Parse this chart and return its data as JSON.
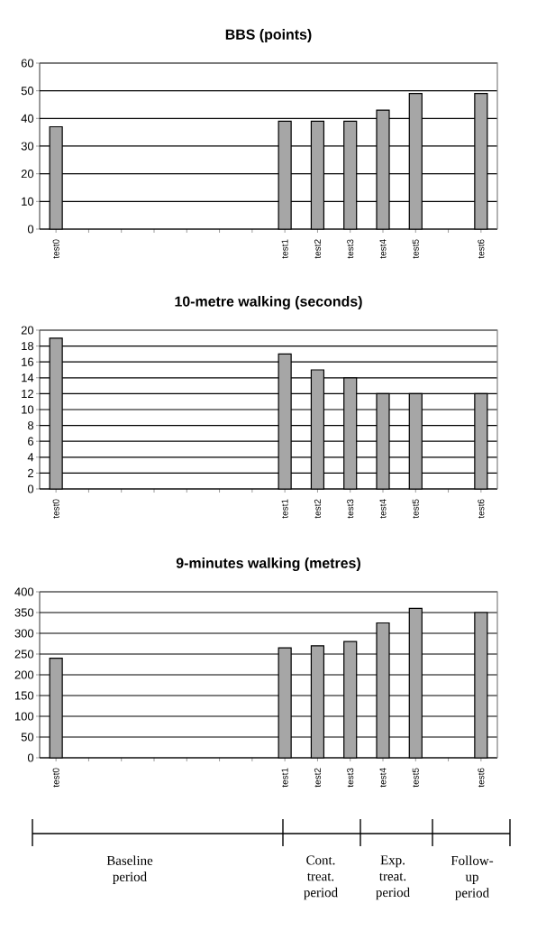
{
  "chart_data": [
    {
      "type": "bar",
      "title": "BBS (points)",
      "categories": [
        "test0",
        null,
        null,
        null,
        null,
        null,
        null,
        "test1",
        "test2",
        "test3",
        "test4",
        "test5",
        null,
        "test6"
      ],
      "values": [
        37,
        null,
        null,
        null,
        null,
        null,
        null,
        39,
        39,
        39,
        43,
        49,
        null,
        49
      ],
      "color": "#a6a6a6",
      "ylim": [
        0,
        60
      ],
      "yticks": [
        0,
        10,
        20,
        30,
        40,
        50,
        60
      ],
      "grid": "y"
    },
    {
      "type": "bar",
      "title": "10-metre walking (seconds)",
      "categories": [
        "test0",
        null,
        null,
        null,
        null,
        null,
        null,
        "test1",
        "test2",
        "test3",
        "test4",
        "test5",
        null,
        "test6"
      ],
      "values": [
        19,
        null,
        null,
        null,
        null,
        null,
        null,
        17,
        15,
        14,
        12,
        12,
        null,
        12
      ],
      "color": "#a6a6a6",
      "ylim": [
        0,
        20
      ],
      "yticks": [
        0,
        2,
        4,
        6,
        8,
        10,
        12,
        14,
        16,
        18,
        20
      ],
      "grid": "y"
    },
    {
      "type": "bar",
      "title": "9-minutes walking (metres)",
      "categories": [
        "test0",
        null,
        null,
        null,
        null,
        null,
        null,
        "test1",
        "test2",
        "test3",
        "test4",
        "test5",
        null,
        "test6"
      ],
      "values": [
        240,
        null,
        null,
        null,
        null,
        null,
        null,
        265,
        270,
        280,
        325,
        360,
        null,
        350
      ],
      "color": "#a6a6a6",
      "ylim": [
        0,
        400
      ],
      "yticks": [
        0,
        50,
        100,
        150,
        200,
        250,
        300,
        350,
        400
      ],
      "grid": "y",
      "annotations": [
        "Baseline period",
        "Cont. treat. period",
        "Exp. treat. period",
        "Follow-up period"
      ]
    }
  ]
}
